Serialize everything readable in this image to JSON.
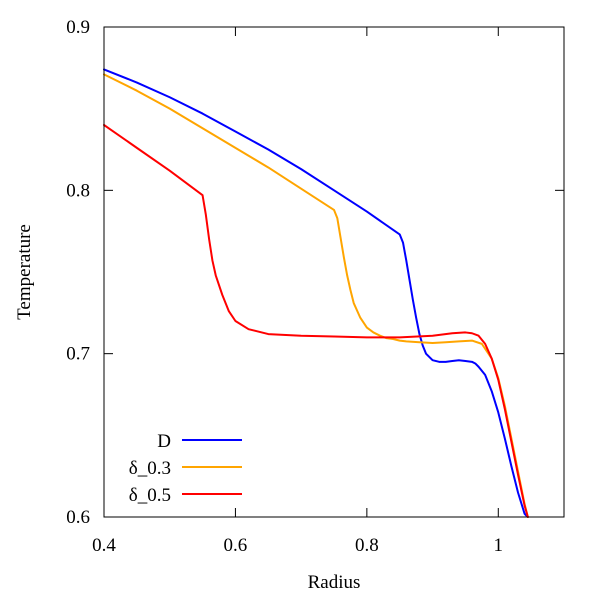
{
  "chart_data": {
    "type": "line",
    "title": "",
    "xlabel": "Radius",
    "ylabel": "Temperature",
    "xlim": [
      0.4,
      1.1
    ],
    "ylim": [
      0.6,
      0.9
    ],
    "xticks": [
      0.4,
      0.6,
      0.8,
      1.0
    ],
    "xtick_labels": [
      "0.4",
      "0.6",
      "0.8",
      "1"
    ],
    "yticks": [
      0.6,
      0.7,
      0.8,
      0.9
    ],
    "ytick_labels": [
      "0.6",
      "0.7",
      "0.8",
      "0.9"
    ],
    "grid": false,
    "legend_position": "bottom-left",
    "series": [
      {
        "name": "D",
        "color": "#0000ff",
        "x": [
          0.4,
          0.45,
          0.5,
          0.55,
          0.6,
          0.65,
          0.7,
          0.75,
          0.8,
          0.85,
          0.855,
          0.86,
          0.865,
          0.87,
          0.875,
          0.88,
          0.885,
          0.89,
          0.9,
          0.91,
          0.92,
          0.93,
          0.94,
          0.95,
          0.96,
          0.965,
          0.97,
          0.98,
          0.99,
          1.0,
          1.01,
          1.02,
          1.03,
          1.04,
          1.045
        ],
        "y": [
          0.874,
          0.866,
          0.857,
          0.847,
          0.836,
          0.825,
          0.813,
          0.8,
          0.787,
          0.773,
          0.768,
          0.757,
          0.745,
          0.733,
          0.722,
          0.712,
          0.705,
          0.7,
          0.696,
          0.695,
          0.695,
          0.6955,
          0.696,
          0.6955,
          0.695,
          0.694,
          0.692,
          0.687,
          0.677,
          0.664,
          0.648,
          0.631,
          0.615,
          0.602,
          0.6
        ]
      },
      {
        "name": "δ_0.3",
        "color": "#ffa500",
        "x": [
          0.4,
          0.45,
          0.5,
          0.55,
          0.6,
          0.65,
          0.7,
          0.75,
          0.755,
          0.76,
          0.765,
          0.77,
          0.775,
          0.78,
          0.79,
          0.8,
          0.81,
          0.82,
          0.83,
          0.84,
          0.85,
          0.86,
          0.88,
          0.9,
          0.92,
          0.94,
          0.96,
          0.975,
          0.99,
          1.0,
          1.01,
          1.02,
          1.03,
          1.04,
          1.045
        ],
        "y": [
          0.871,
          0.861,
          0.85,
          0.838,
          0.826,
          0.814,
          0.801,
          0.788,
          0.783,
          0.771,
          0.759,
          0.748,
          0.739,
          0.731,
          0.722,
          0.716,
          0.713,
          0.711,
          0.7095,
          0.709,
          0.708,
          0.7075,
          0.707,
          0.7065,
          0.707,
          0.7075,
          0.708,
          0.706,
          0.697,
          0.685,
          0.668,
          0.648,
          0.628,
          0.608,
          0.6
        ]
      },
      {
        "name": "δ_0.5",
        "color": "#ff0000",
        "x": [
          0.4,
          0.45,
          0.5,
          0.55,
          0.555,
          0.56,
          0.565,
          0.57,
          0.58,
          0.59,
          0.6,
          0.62,
          0.65,
          0.7,
          0.75,
          0.8,
          0.85,
          0.9,
          0.93,
          0.95,
          0.96,
          0.97,
          0.98,
          0.99,
          1.0,
          1.01,
          1.02,
          1.03,
          1.04,
          1.045
        ],
        "y": [
          0.84,
          0.826,
          0.812,
          0.797,
          0.785,
          0.77,
          0.757,
          0.748,
          0.736,
          0.726,
          0.72,
          0.715,
          0.712,
          0.711,
          0.7105,
          0.71,
          0.71,
          0.711,
          0.7125,
          0.713,
          0.7125,
          0.711,
          0.706,
          0.697,
          0.684,
          0.666,
          0.646,
          0.626,
          0.607,
          0.6
        ]
      }
    ]
  }
}
